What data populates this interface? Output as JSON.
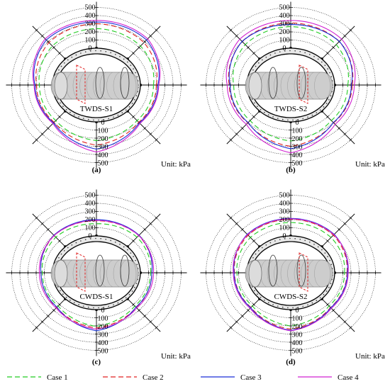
{
  "figure": {
    "unit_label": "Unit: kPa",
    "colors": {
      "case1": "#22cc22",
      "case2": "#e02020",
      "case3": "#1a2fd8",
      "case4": "#d020d0",
      "lining": "#000000"
    },
    "legend": [
      {
        "label": "Case 1",
        "style": "dashed",
        "color": "#22cc22"
      },
      {
        "label": "Case 2",
        "style": "dashed",
        "color": "#e02020"
      },
      {
        "label": "Case 3",
        "style": "solid",
        "color": "#1a2fd8"
      },
      {
        "label": "Case 4",
        "style": "solid",
        "color": "#d020d0"
      }
    ]
  },
  "chart_data": [
    {
      "type": "radar",
      "panel": "(a)",
      "label": "TWDS-S1",
      "rings": [
        0,
        100,
        200,
        300,
        400,
        500
      ],
      "tick_labels_top": [
        "500",
        "400",
        "300",
        "200",
        "100",
        "0"
      ],
      "tick_labels_bottom": [
        "0",
        "100",
        "200",
        "300",
        "400",
        "500"
      ],
      "unit": "Unit: kPa",
      "series": [
        {
          "name": "Case 1",
          "values": [
            240,
            225,
            160,
            165,
            230
          ]
        },
        {
          "name": "Case 2",
          "values": [
            300,
            285,
            195,
            195,
            285
          ]
        },
        {
          "name": "Case 3",
          "values": [
            320,
            330,
            215,
            205,
            335
          ]
        },
        {
          "name": "Case 4",
          "values": [
            340,
            350,
            225,
            215,
            370
          ]
        }
      ]
    },
    {
      "type": "radar",
      "panel": "(b)",
      "label": "TWDS-S2",
      "rings": [
        0,
        100,
        200,
        300,
        400,
        500
      ],
      "tick_labels_top": [
        "500",
        "400",
        "300",
        "200",
        "100",
        "0"
      ],
      "tick_labels_bottom": [
        "0",
        "100",
        "200",
        "300",
        "400",
        "500"
      ],
      "unit": "Unit: kPa",
      "series": [
        {
          "name": "Case 1",
          "values": [
            265,
            250,
            160,
            165,
            235
          ]
        },
        {
          "name": "Case 2",
          "values": [
            310,
            305,
            215,
            205,
            300
          ]
        },
        {
          "name": "Case 3",
          "values": [
            290,
            305,
            205,
            200,
            330
          ]
        },
        {
          "name": "Case 4",
          "values": [
            340,
            345,
            240,
            230,
            380
          ]
        }
      ]
    },
    {
      "type": "radar",
      "panel": "(c)",
      "label": "CWDS-S1",
      "rings": [
        0,
        100,
        200,
        300,
        400,
        500
      ],
      "tick_labels_top": [
        "500",
        "400",
        "300",
        "200",
        "100",
        "0"
      ],
      "tick_labels_bottom": [
        "0",
        "100",
        "200",
        "300",
        "400",
        "500"
      ],
      "unit": "Unit: kPa",
      "series": [
        {
          "name": "Case 1",
          "values": [
            150,
            165,
            125,
            125,
            205
          ]
        },
        {
          "name": "Case 2",
          "values": [
            185,
            195,
            140,
            150,
            225
          ]
        },
        {
          "name": "Case 3",
          "values": [
            200,
            200,
            140,
            145,
            260
          ]
        },
        {
          "name": "Case 4",
          "values": [
            190,
            195,
            160,
            160,
            240
          ]
        }
      ]
    },
    {
      "type": "radar",
      "panel": "(d)",
      "label": "CWDS-S2",
      "rings": [
        0,
        100,
        200,
        300,
        400,
        500
      ],
      "tick_labels_top": [
        "500",
        "400",
        "300",
        "200",
        "100",
        "0"
      ],
      "tick_labels_bottom": [
        "0",
        "100",
        "200",
        "300",
        "400",
        "500"
      ],
      "unit": "Unit: kPa",
      "series": [
        {
          "name": "Case 1",
          "values": [
            165,
            160,
            120,
            125,
            200
          ]
        },
        {
          "name": "Case 2",
          "values": [
            205,
            200,
            150,
            150,
            240
          ]
        },
        {
          "name": "Case 3",
          "values": [
            215,
            215,
            155,
            155,
            255
          ]
        },
        {
          "name": "Case 4",
          "values": [
            210,
            210,
            165,
            165,
            260
          ]
        }
      ]
    }
  ]
}
